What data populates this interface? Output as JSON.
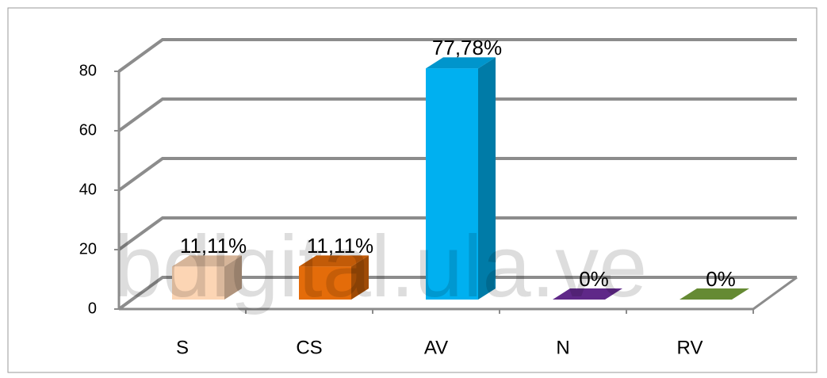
{
  "chart_data": {
    "type": "bar3d",
    "categories": [
      "S",
      "CS",
      "AV",
      "N",
      "RV"
    ],
    "values": [
      11.11,
      11.11,
      77.78,
      0,
      0
    ],
    "value_labels": [
      "11,11%",
      "11,11%",
      "77,78%",
      "0%",
      "0%"
    ],
    "colors": [
      "#fcd5b4",
      "#e46c0a",
      "#00b0f0",
      "#7030a0",
      "#77a33c"
    ],
    "ylim": [
      0,
      80
    ],
    "yticks": [
      0,
      20,
      40,
      60,
      80
    ],
    "grid": true,
    "watermark": "bdigital.ula.ve"
  }
}
